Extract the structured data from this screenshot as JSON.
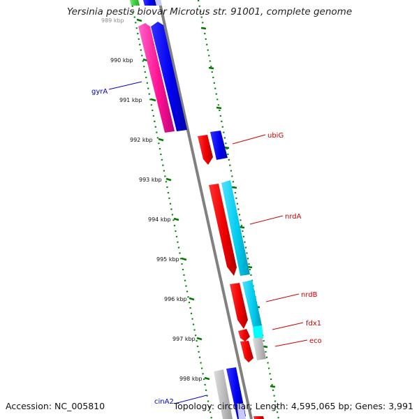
{
  "title": "Yersinia pestis biovar Microtus str. 91001, complete genome",
  "accession": "Accession: NC_005810",
  "summary": "Topology: circular; Length: 4,595,065 bp; Genes: 3,991",
  "ticks": [
    {
      "label": "989 kbp",
      "faded": true
    },
    {
      "label": "990 kbp"
    },
    {
      "label": "991 kbp"
    },
    {
      "label": "992 kbp"
    },
    {
      "label": "993 kbp"
    },
    {
      "label": "994 kbp"
    },
    {
      "label": "995 kbp"
    },
    {
      "label": "996 kbp"
    },
    {
      "label": "997 kbp"
    },
    {
      "label": "998 kbp"
    }
  ],
  "genes": [
    {
      "name": "gyrA",
      "color": "#0000cc"
    },
    {
      "name": "ubiG",
      "color": "#cc0000"
    },
    {
      "name": "nrdA",
      "color": "#cc0000"
    },
    {
      "name": "nrdB",
      "color": "#cc0000"
    },
    {
      "name": "fdx1",
      "color": "#cc0000"
    },
    {
      "name": "eco",
      "color": "#cc0000"
    },
    {
      "name": "cinA2",
      "color": "#0000cc"
    }
  ],
  "colors": {
    "backbone": "#808080",
    "dotted_track": "#008000",
    "tick": "#007700",
    "pink_feature": "#ff1493",
    "blue_feature": "#0000ee",
    "red_feature": "#ee0000",
    "cyan_feature": "#00ccee",
    "grey_feature": "#b8b8b8",
    "green_feature": "#33cc33"
  }
}
